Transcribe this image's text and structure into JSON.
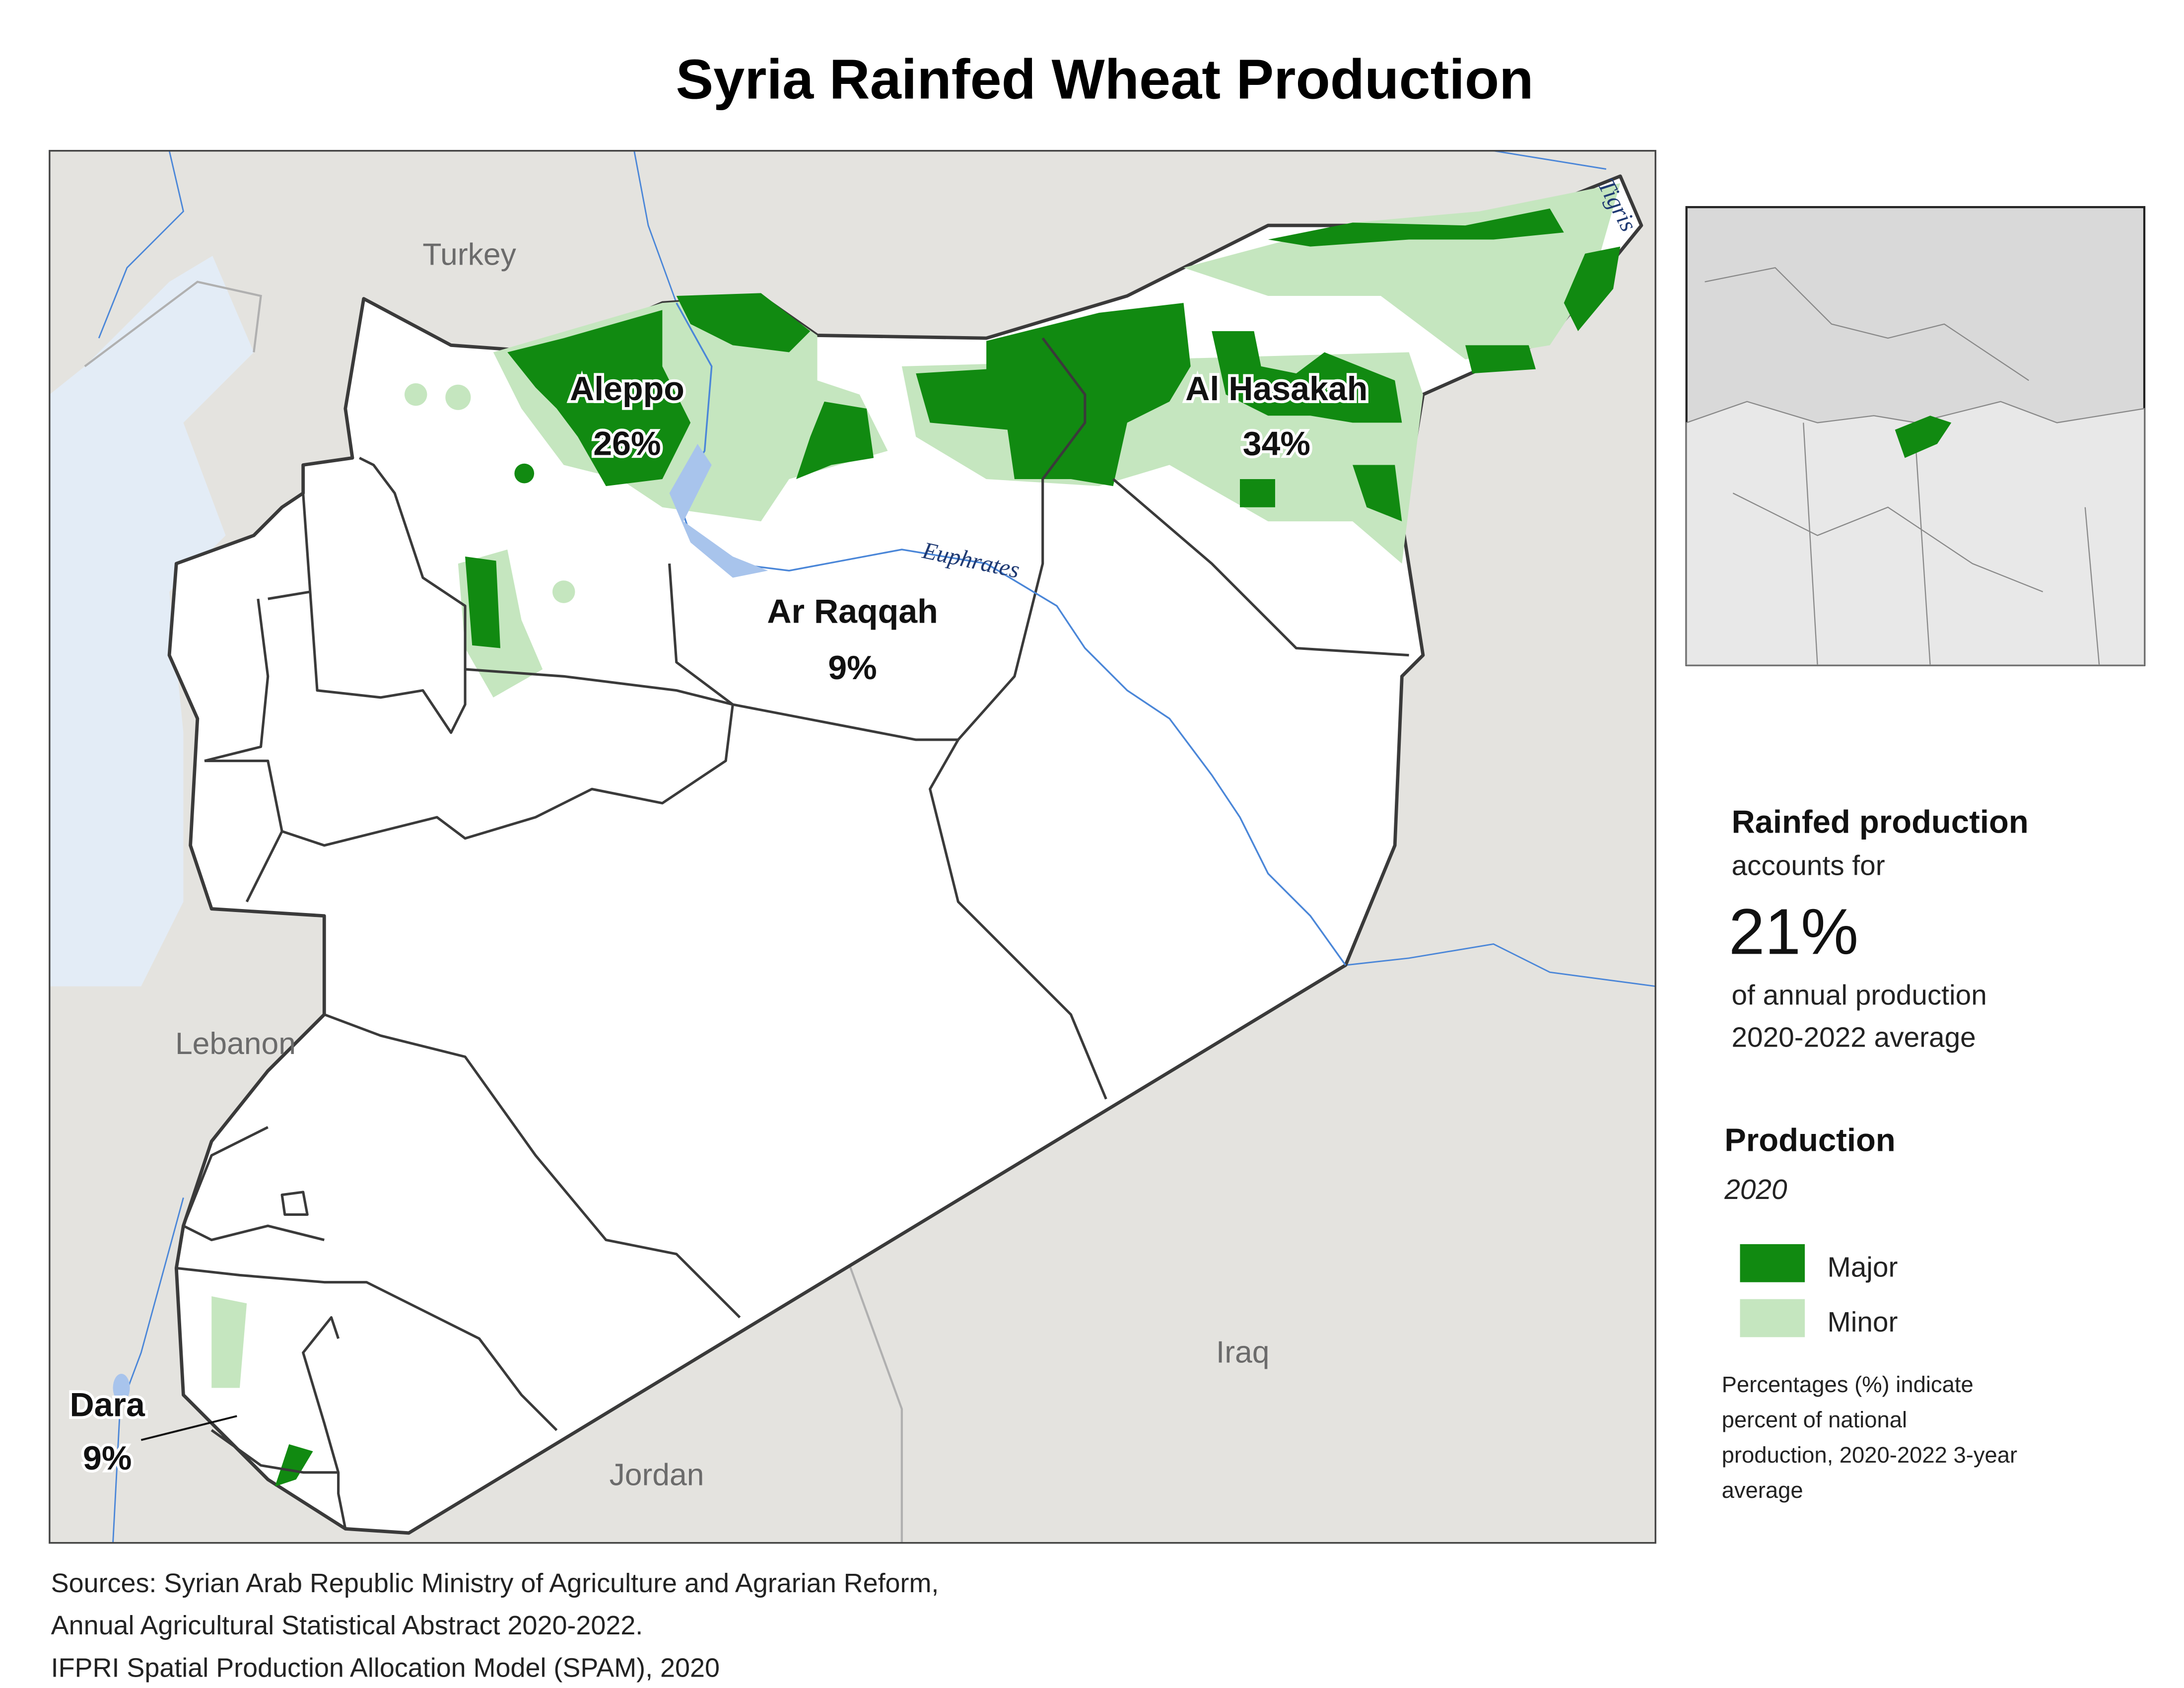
{
  "header": {
    "title": "Syria Rainfed Wheat Production"
  },
  "map": {
    "countries": [
      "Turkey",
      "Lebanon",
      "Iraq",
      "Jordan"
    ],
    "rivers": [
      "Euphrates",
      "Tigris"
    ],
    "regions": [
      {
        "name": "Aleppo",
        "share": "26%"
      },
      {
        "name": "Al Hasakah",
        "share": "34%"
      },
      {
        "name": "Ar Raqqah",
        "share": "9%"
      },
      {
        "name": "Dara",
        "share": "9%"
      }
    ]
  },
  "summary": {
    "heading": "Rainfed production",
    "lead": "accounts for",
    "value": "21%",
    "tail": [
      "of annual production",
      "2020-2022 average"
    ]
  },
  "legend": {
    "title": "Production",
    "subtitle": "2020",
    "items": [
      "Major",
      "Minor"
    ],
    "note": [
      "Percentages (%) indicate",
      "percent of national",
      "production, 2020-2022 3-year",
      "average"
    ]
  },
  "sources": [
    "Sources: Syrian Arab Republic Ministry of Agriculture and Agrarian Reform,",
    "Annual Agricultural Statistical Abstract 2020-2022.",
    "IFPRI Spatial Production Allocation Model (SPAM), 2020"
  ]
}
